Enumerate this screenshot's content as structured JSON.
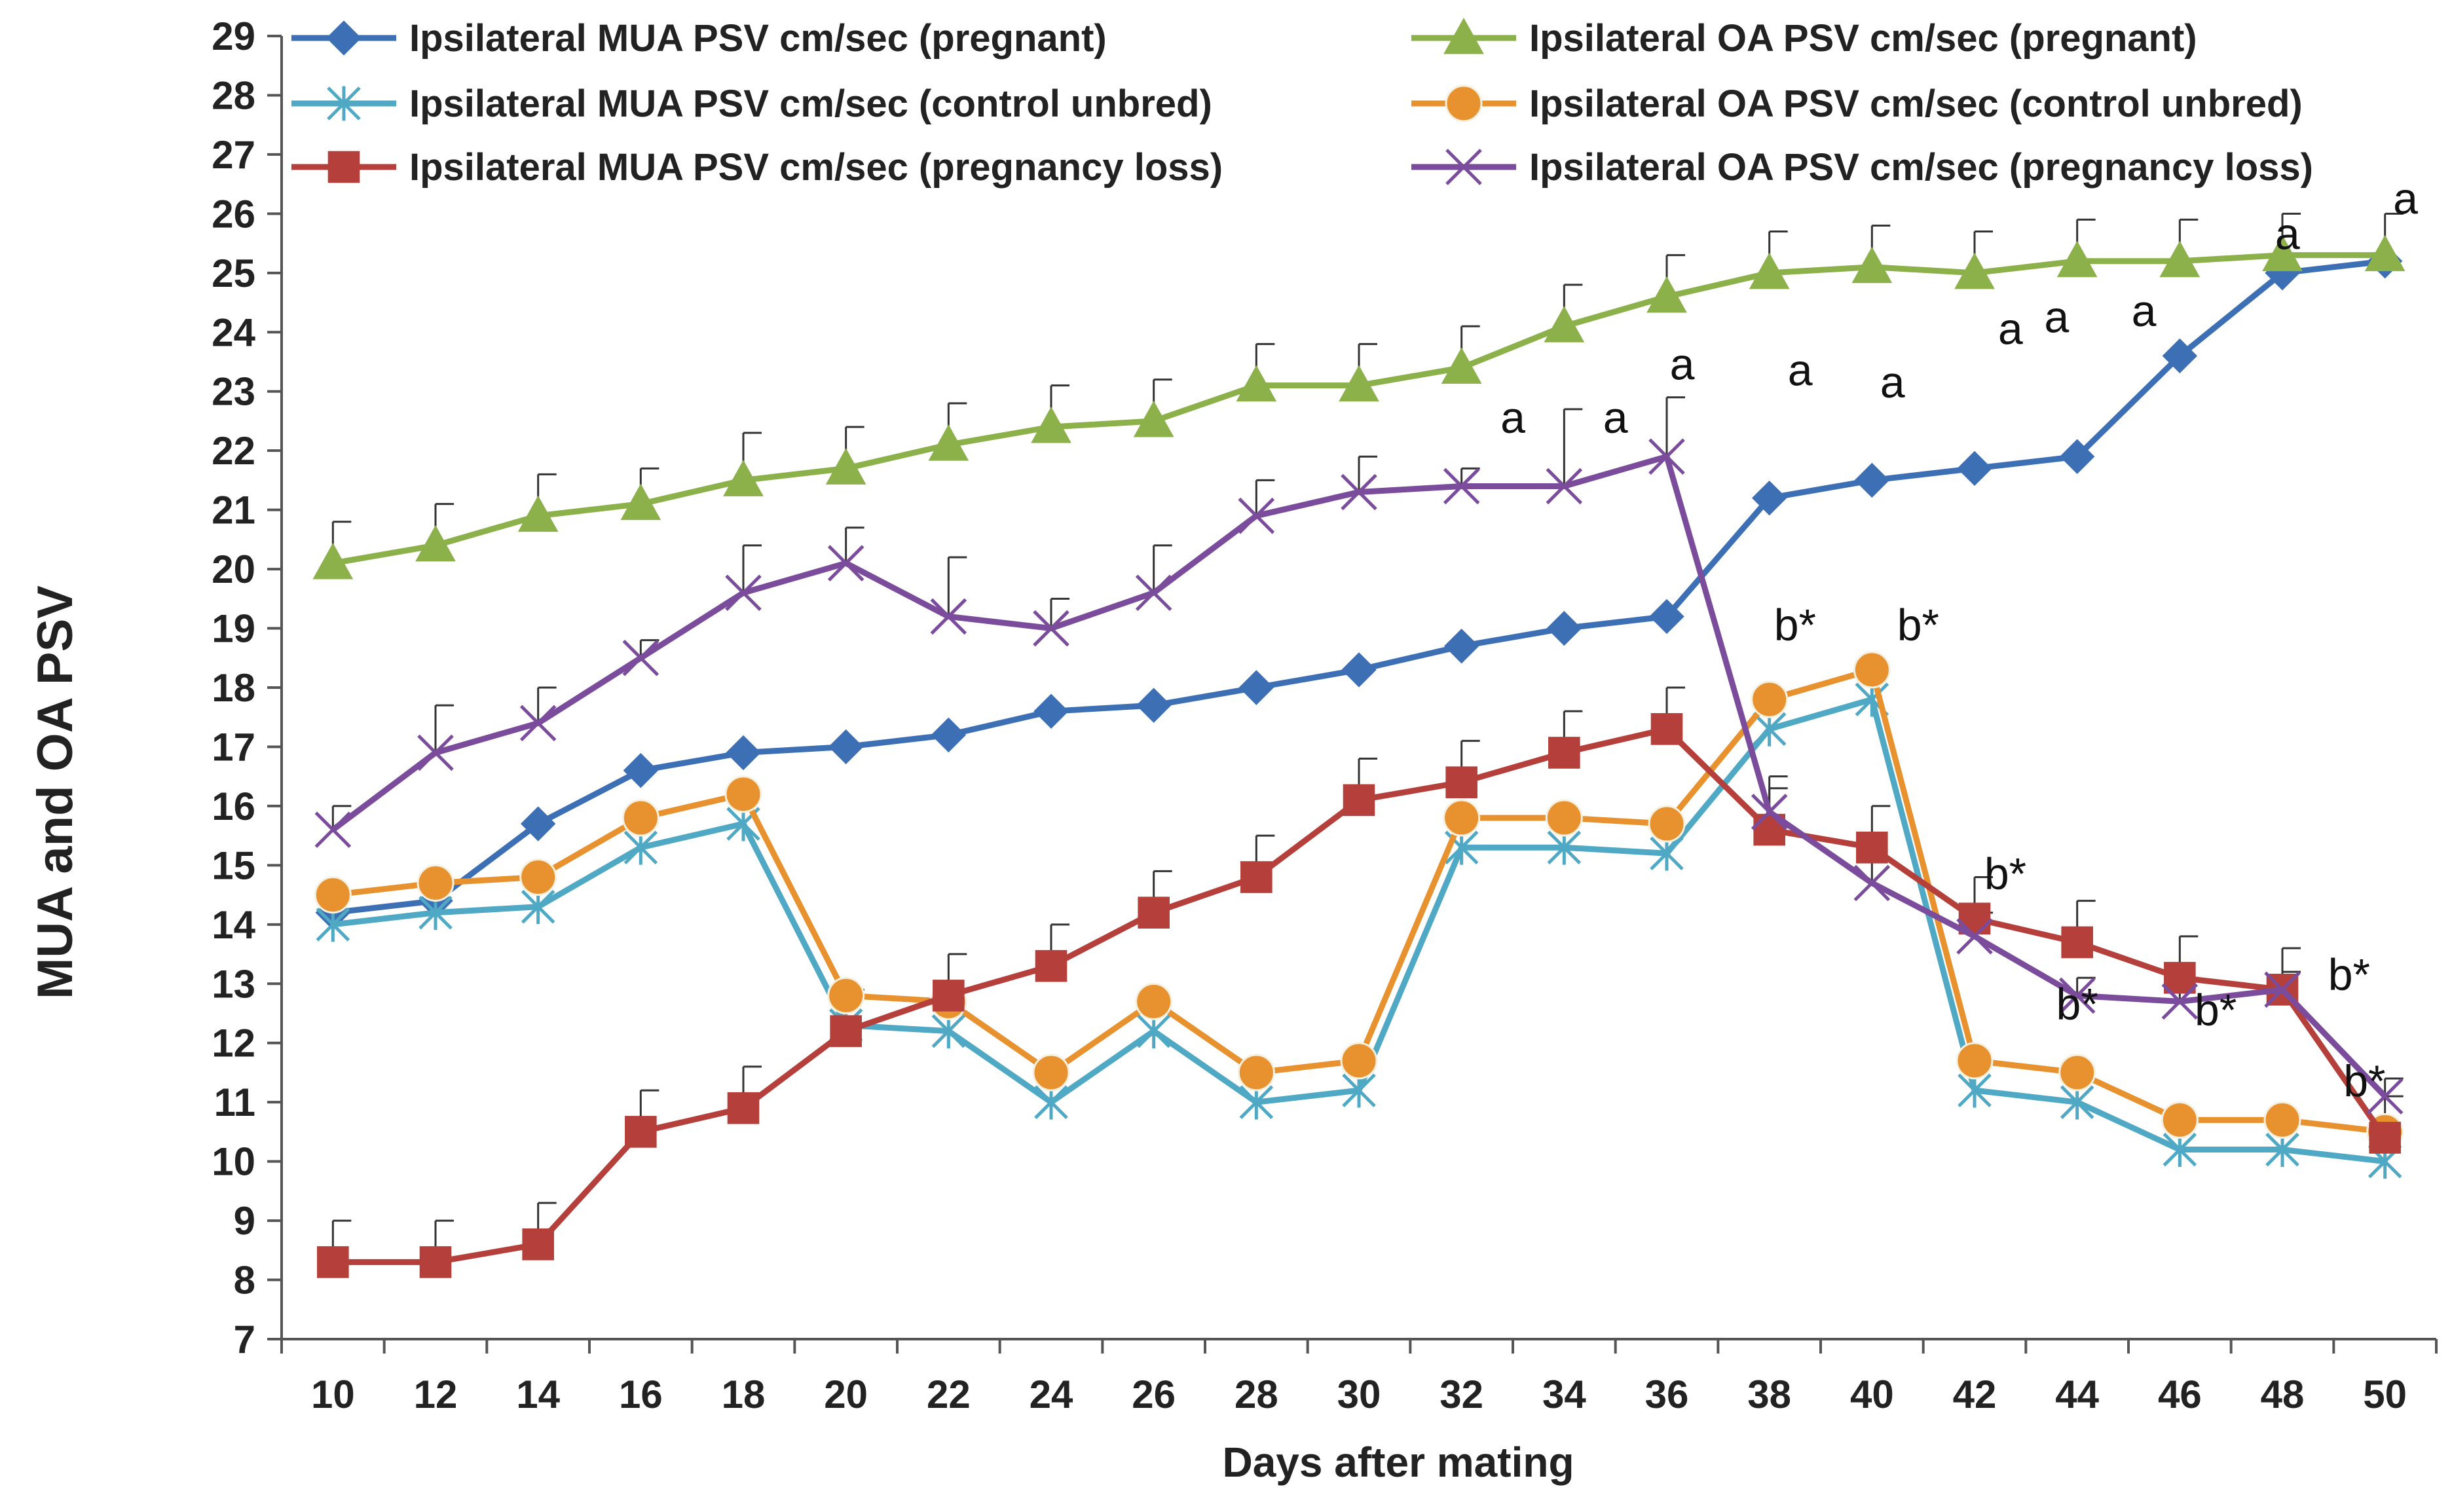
{
  "chart_data": {
    "type": "line",
    "title": "",
    "xlabel": "Days after mating",
    "ylabel": "MUA and OA PSV",
    "x": [
      10,
      12,
      14,
      16,
      18,
      20,
      22,
      24,
      26,
      28,
      30,
      32,
      34,
      36,
      38,
      40,
      42,
      44,
      46,
      48,
      50
    ],
    "xlim": [
      9,
      51
    ],
    "ylim": [
      7,
      29
    ],
    "yticks": [
      7,
      8,
      9,
      10,
      11,
      12,
      13,
      14,
      15,
      16,
      17,
      18,
      19,
      20,
      21,
      22,
      23,
      24,
      25,
      26,
      27,
      28,
      29
    ],
    "legend_position": "top",
    "series": [
      {
        "name": "Ipsilateral MUA PSV cm/sec  (pregnant)",
        "color": "#3d6fb5",
        "marker": "diamond",
        "values": [
          14.2,
          14.4,
          15.7,
          16.6,
          16.9,
          17.0,
          17.2,
          17.6,
          17.7,
          18.0,
          18.3,
          18.7,
          19.0,
          19.2,
          21.2,
          21.5,
          21.7,
          21.9,
          23.6,
          25.0,
          25.2
        ]
      },
      {
        "name": "Ipsilateral OA  PSV cm/sec (pregnant)",
        "color": "#8cb04a",
        "marker": "triangle",
        "values": [
          20.1,
          20.4,
          20.9,
          21.1,
          21.5,
          21.7,
          22.1,
          22.4,
          22.5,
          23.1,
          23.1,
          23.4,
          24.1,
          24.6,
          25.0,
          25.1,
          25.0,
          25.2,
          25.2,
          25.3,
          25.3
        ],
        "error": [
          0.7,
          0.7,
          0.7,
          0.6,
          0.8,
          0.7,
          0.7,
          0.7,
          0.7,
          0.7,
          0.7,
          0.7,
          0.7,
          0.7,
          0.7,
          0.7,
          0.7,
          0.7,
          0.7,
          0.7,
          0.7
        ]
      },
      {
        "name": "Ipsilateral MUA PSV cm/sec   (control unbred)",
        "color": "#4fa8c4",
        "marker": "asterisk",
        "values": [
          14.0,
          14.2,
          14.3,
          15.3,
          15.7,
          12.3,
          12.2,
          11.0,
          12.2,
          11.0,
          11.2,
          15.3,
          15.3,
          15.2,
          17.3,
          17.8,
          11.2,
          11.0,
          10.2,
          10.2,
          10.0
        ]
      },
      {
        "name": "Ipsilateral OA PSV cm/sec   (control unbred)",
        "color": "#e8922f",
        "marker": "circle",
        "values": [
          14.5,
          14.7,
          14.8,
          15.8,
          16.2,
          12.8,
          12.7,
          11.5,
          12.7,
          11.5,
          11.7,
          15.8,
          15.8,
          15.7,
          17.8,
          18.3,
          11.7,
          11.5,
          10.7,
          10.7,
          10.5
        ]
      },
      {
        "name": "Ipsilateral MUA PSV cm/sec  (pregnancy loss)",
        "color": "#b5403b",
        "marker": "square",
        "values": [
          8.3,
          8.3,
          8.6,
          10.5,
          10.9,
          12.2,
          12.8,
          13.3,
          14.2,
          14.8,
          16.1,
          16.4,
          16.9,
          17.3,
          15.6,
          15.3,
          14.1,
          13.7,
          13.1,
          12.9,
          10.4
        ],
        "error": [
          0.7,
          0.7,
          0.7,
          0.7,
          0.7,
          0.7,
          0.7,
          0.7,
          0.7,
          0.7,
          0.7,
          0.7,
          0.7,
          0.7,
          0.7,
          0.7,
          0.7,
          0.7,
          0.7,
          0.7,
          0.7
        ]
      },
      {
        "name": "Ipsilateral OA  PSV cm/sec (pregnancy loss)",
        "color": "#7a4c9b",
        "marker": "x",
        "values": [
          15.6,
          16.9,
          17.4,
          18.5,
          19.6,
          20.1,
          19.2,
          19.0,
          19.6,
          20.9,
          21.3,
          21.4,
          21.4,
          21.9,
          15.9,
          14.7,
          13.8,
          12.8,
          12.7,
          12.9,
          11.1
        ],
        "error": [
          0.4,
          0.8,
          0.6,
          0.3,
          0.8,
          0.6,
          1.0,
          0.5,
          0.8,
          0.6,
          0.6,
          0.3,
          1.3,
          1.0,
          0.6,
          0.4,
          0.4,
          0.3,
          0.4,
          0.3,
          0.3
        ]
      }
    ],
    "annotations": [
      {
        "text": "a",
        "x": 33.0,
        "y": 22.3
      },
      {
        "text": "a",
        "x": 35.0,
        "y": 22.3
      },
      {
        "text": "a",
        "x": 36.3,
        "y": 23.2
      },
      {
        "text": "a",
        "x": 38.6,
        "y": 23.1
      },
      {
        "text": "a",
        "x": 40.4,
        "y": 22.9
      },
      {
        "text": "a",
        "x": 42.7,
        "y": 23.8
      },
      {
        "text": "a",
        "x": 43.6,
        "y": 24.0
      },
      {
        "text": "a",
        "x": 45.3,
        "y": 24.1
      },
      {
        "text": "a",
        "x": 48.1,
        "y": 25.4
      },
      {
        "text": "a",
        "x": 50.4,
        "y": 26.0
      },
      {
        "text": "b*",
        "x": 38.5,
        "y": 18.8
      },
      {
        "text": "b*",
        "x": 40.9,
        "y": 18.8
      },
      {
        "text": "b*",
        "x": 42.6,
        "y": 14.6
      },
      {
        "text": "b*",
        "x": 44.0,
        "y": 12.4
      },
      {
        "text": "b*",
        "x": 46.7,
        "y": 12.3
      },
      {
        "text": "b*",
        "x": 49.3,
        "y": 12.9
      },
      {
        "text": "b*",
        "x": 49.6,
        "y": 11.1
      }
    ]
  }
}
